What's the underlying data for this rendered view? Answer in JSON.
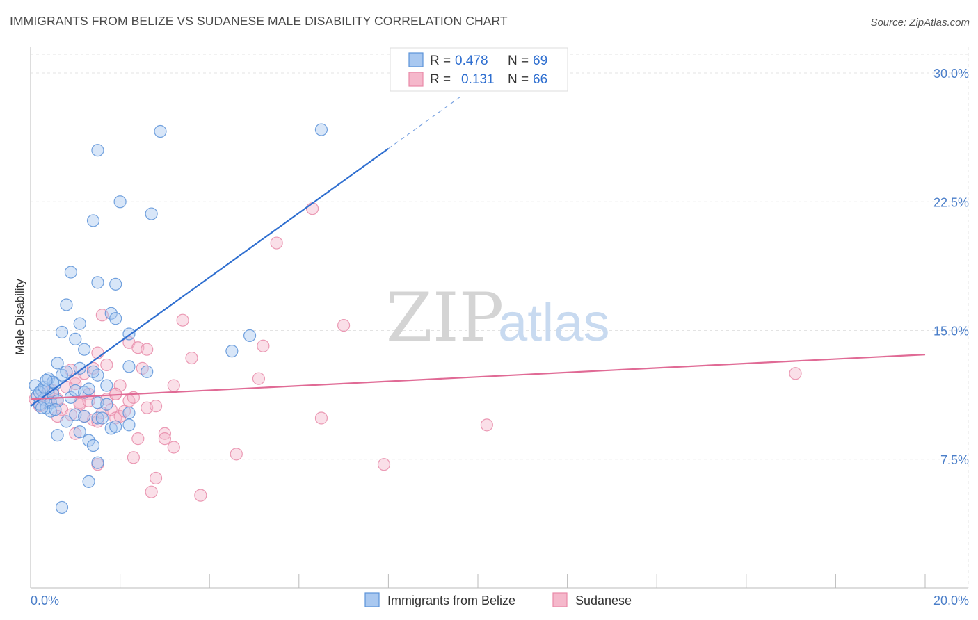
{
  "header": {
    "title": "IMMIGRANTS FROM BELIZE VS SUDANESE MALE DISABILITY CORRELATION CHART",
    "source": "Source: ZipAtlas.com"
  },
  "watermark": {
    "zip": "ZIP",
    "atlas": "atlas"
  },
  "legend": {
    "items": [
      {
        "r_label": "R =",
        "r_value": "0.478",
        "n_label": "N =",
        "n_value": "69"
      },
      {
        "r_label": "R =",
        "r_value": "0.131",
        "n_label": "N =",
        "n_value": "66"
      }
    ]
  },
  "colors": {
    "blue_fill": "#a9c8f0",
    "blue_stroke": "#5b92d8",
    "blue_line": "#2f6fd0",
    "pink_fill": "#f5b8cb",
    "pink_stroke": "#e88aa8",
    "pink_line": "#e06a95",
    "grid": "#e3e3e3",
    "axis_text": "#4a7ec9"
  },
  "chart_data": {
    "type": "scatter",
    "title": "IMMIGRANTS FROM BELIZE VS SUDANESE MALE DISABILITY CORRELATION CHART",
    "xlabel": "",
    "ylabel": "Male Disability",
    "xlim": [
      0,
      20
    ],
    "ylim": [
      0,
      31.5
    ],
    "x_tick_labels": [
      "0.0%",
      "20.0%"
    ],
    "y_ticks": [
      7.5,
      15.0,
      22.5,
      30.0
    ],
    "y_tick_labels": [
      "7.5%",
      "15.0%",
      "22.5%",
      "30.0%"
    ],
    "grid": true,
    "legend_position": "top-center",
    "series": [
      {
        "name": "Immigrants from Belize",
        "color_key": "blue",
        "R": 0.478,
        "N": 69,
        "trend": {
          "x0": 0.0,
          "y0": 10.6,
          "x1": 8.0,
          "y1": 25.6,
          "dash_to_x": 9.6,
          "dash_to_y": 28.6
        },
        "points": [
          [
            0.1,
            11.8
          ],
          [
            0.15,
            11.2
          ],
          [
            0.2,
            10.7
          ],
          [
            0.25,
            11.5
          ],
          [
            0.3,
            11.0
          ],
          [
            0.35,
            10.5
          ],
          [
            0.4,
            11.6
          ],
          [
            0.45,
            10.8
          ],
          [
            0.5,
            11.3
          ],
          [
            0.55,
            11.9
          ],
          [
            0.6,
            10.9
          ],
          [
            0.2,
            11.4
          ],
          [
            0.3,
            11.7
          ],
          [
            0.4,
            12.2
          ],
          [
            0.5,
            12.0
          ],
          [
            0.6,
            13.1
          ],
          [
            0.7,
            12.4
          ],
          [
            0.8,
            12.6
          ],
          [
            0.9,
            11.1
          ],
          [
            1.0,
            11.5
          ],
          [
            1.1,
            12.8
          ],
          [
            1.2,
            11.4
          ],
          [
            1.3,
            11.6
          ],
          [
            0.7,
            14.9
          ],
          [
            0.8,
            16.5
          ],
          [
            0.9,
            18.4
          ],
          [
            1.0,
            14.5
          ],
          [
            1.1,
            15.4
          ],
          [
            1.2,
            13.9
          ],
          [
            1.0,
            10.1
          ],
          [
            1.1,
            9.1
          ],
          [
            1.2,
            10.0
          ],
          [
            1.3,
            8.6
          ],
          [
            1.4,
            8.3
          ],
          [
            1.5,
            7.3
          ],
          [
            1.3,
            6.2
          ],
          [
            0.7,
            4.7
          ],
          [
            0.6,
            8.9
          ],
          [
            0.8,
            9.7
          ],
          [
            1.5,
            9.9
          ],
          [
            1.5,
            10.8
          ],
          [
            1.7,
            10.7
          ],
          [
            1.6,
            9.9
          ],
          [
            1.8,
            9.3
          ],
          [
            1.9,
            9.4
          ],
          [
            2.2,
            10.2
          ],
          [
            2.2,
            9.5
          ],
          [
            1.5,
            12.4
          ],
          [
            1.7,
            11.8
          ],
          [
            1.4,
            12.6
          ],
          [
            1.4,
            21.4
          ],
          [
            1.5,
            25.5
          ],
          [
            2.0,
            22.5
          ],
          [
            2.7,
            21.8
          ],
          [
            2.9,
            26.6
          ],
          [
            1.5,
            17.8
          ],
          [
            1.9,
            17.7
          ],
          [
            1.8,
            16.0
          ],
          [
            1.9,
            15.7
          ],
          [
            2.2,
            14.8
          ],
          [
            2.2,
            12.9
          ],
          [
            2.6,
            12.6
          ],
          [
            4.5,
            13.8
          ],
          [
            4.9,
            14.7
          ],
          [
            6.5,
            26.7
          ],
          [
            0.35,
            12.1
          ],
          [
            0.45,
            10.3
          ],
          [
            0.25,
            10.5
          ],
          [
            0.55,
            10.4
          ]
        ]
      },
      {
        "name": "Sudanese",
        "color_key": "pink",
        "R": 0.131,
        "N": 66,
        "trend": {
          "x0": 0.0,
          "y0": 11.0,
          "x1": 20.0,
          "y1": 13.6
        },
        "points": [
          [
            0.1,
            11.0
          ],
          [
            0.2,
            10.6
          ],
          [
            0.3,
            11.2
          ],
          [
            0.4,
            10.9
          ],
          [
            0.5,
            11.5
          ],
          [
            0.6,
            11.0
          ],
          [
            0.7,
            10.4
          ],
          [
            0.8,
            11.7
          ],
          [
            0.9,
            10.1
          ],
          [
            1.0,
            11.9
          ],
          [
            1.1,
            10.8
          ],
          [
            1.2,
            10.0
          ],
          [
            1.3,
            11.3
          ],
          [
            1.4,
            9.8
          ],
          [
            1.5,
            9.7
          ],
          [
            1.6,
            10.2
          ],
          [
            1.7,
            11.0
          ],
          [
            1.8,
            10.4
          ],
          [
            1.9,
            9.9
          ],
          [
            2.0,
            10.0
          ],
          [
            2.1,
            10.3
          ],
          [
            2.2,
            10.9
          ],
          [
            2.3,
            11.1
          ],
          [
            1.0,
            12.2
          ],
          [
            1.2,
            12.5
          ],
          [
            1.4,
            12.8
          ],
          [
            1.5,
            13.7
          ],
          [
            1.7,
            13.0
          ],
          [
            1.9,
            11.3
          ],
          [
            2.0,
            11.8
          ],
          [
            2.2,
            14.3
          ],
          [
            2.4,
            14.0
          ],
          [
            2.5,
            12.8
          ],
          [
            2.6,
            13.9
          ],
          [
            2.6,
            10.5
          ],
          [
            2.8,
            10.6
          ],
          [
            3.0,
            9.0
          ],
          [
            3.0,
            8.7
          ],
          [
            3.2,
            8.2
          ],
          [
            3.2,
            11.8
          ],
          [
            3.4,
            15.6
          ],
          [
            3.6,
            13.4
          ],
          [
            4.6,
            7.8
          ],
          [
            5.1,
            12.2
          ],
          [
            5.2,
            14.1
          ],
          [
            5.5,
            20.1
          ],
          [
            6.3,
            22.1
          ],
          [
            6.5,
            9.9
          ],
          [
            7.0,
            15.3
          ],
          [
            7.9,
            7.2
          ],
          [
            10.2,
            9.5
          ],
          [
            17.1,
            12.5
          ],
          [
            3.8,
            5.4
          ],
          [
            2.7,
            5.6
          ],
          [
            2.8,
            6.4
          ],
          [
            2.3,
            7.6
          ],
          [
            1.5,
            7.2
          ],
          [
            1.0,
            9.0
          ],
          [
            0.6,
            10.0
          ],
          [
            0.9,
            12.7
          ],
          [
            1.1,
            10.7
          ],
          [
            1.3,
            10.9
          ],
          [
            1.6,
            15.9
          ],
          [
            1.9,
            11.3
          ],
          [
            2.4,
            8.7
          ],
          [
            0.4,
            11.4
          ]
        ]
      }
    ]
  },
  "bottom_legend": {
    "items": [
      "Immigrants from Belize",
      "Sudanese"
    ]
  }
}
